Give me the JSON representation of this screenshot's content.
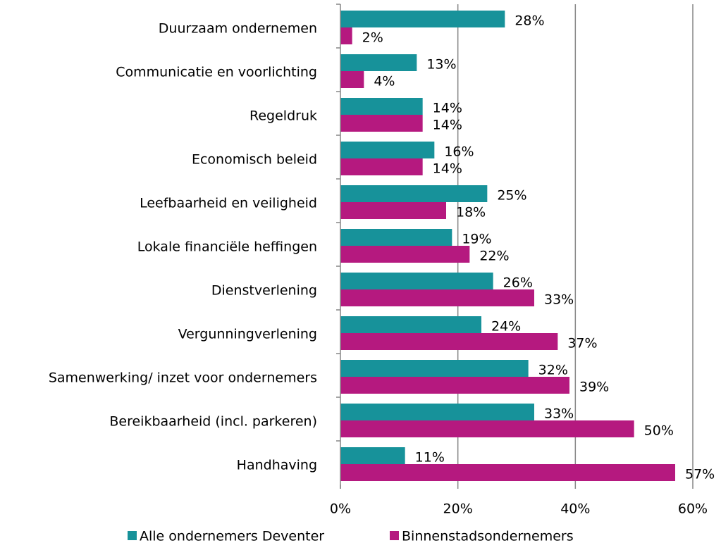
{
  "chart_data": {
    "type": "hbar",
    "categories": [
      "Duurzaam ondernemen",
      "Communicatie en voorlichting",
      "Regeldruk",
      "Economisch beleid",
      "Leefbaarheid en veiligheid",
      "Lokale financiële heffingen",
      "Dienstverlening",
      "Vergunningverlening",
      "Samenwerking/ inzet voor ondernemers",
      "Bereikbaarheid (incl. parkeren)",
      "Handhaving"
    ],
    "series": [
      {
        "name": "Alle ondernemers Deventer",
        "color": "#17929a",
        "values": [
          28,
          13,
          14,
          16,
          25,
          19,
          26,
          24,
          32,
          33,
          11
        ],
        "value_labels": [
          "28%",
          "13%",
          "14%",
          "16%",
          "25%",
          "19%",
          "26%",
          "24%",
          "32%",
          "33%",
          "11%"
        ]
      },
      {
        "name": "Binnenstadsondernemers",
        "color": "#b5197f",
        "values": [
          2,
          4,
          14,
          14,
          18,
          22,
          33,
          37,
          39,
          50,
          57
        ],
        "value_labels": [
          "2%",
          "4%",
          "14%",
          "14%",
          "18%",
          "22%",
          "33%",
          "37%",
          "39%",
          "50%",
          "57%"
        ]
      }
    ],
    "xlim": [
      0,
      60
    ],
    "xticks": [
      {
        "value": 0,
        "label": "0%"
      },
      {
        "value": 20,
        "label": "20%"
      },
      {
        "value": 40,
        "label": "40%"
      },
      {
        "value": 60,
        "label": "60%"
      }
    ],
    "grid": true,
    "legend": "bottom"
  }
}
